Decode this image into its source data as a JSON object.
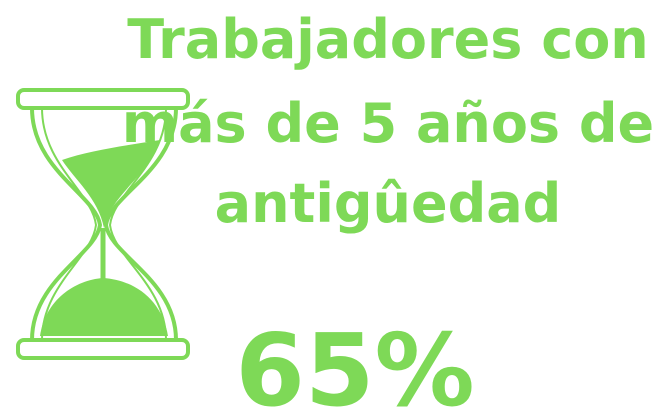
{
  "title": [
    "Trabajadores con",
    "más de 5 años de",
    "antigûedad"
  ],
  "value": "65%"
}
